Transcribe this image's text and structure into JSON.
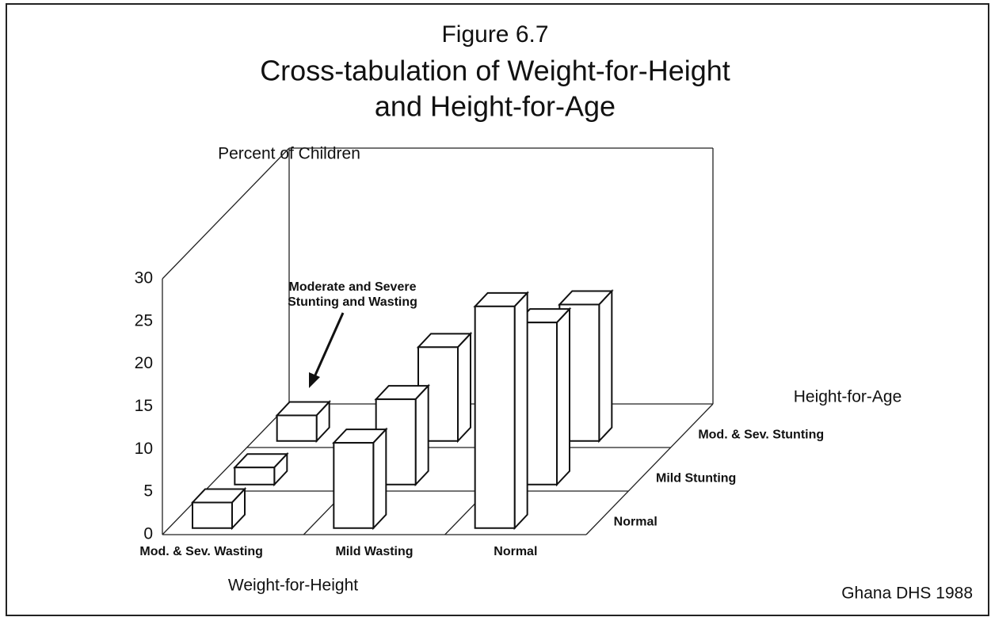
{
  "chart_data": {
    "type": "bar3d",
    "figure": "Figure 6.7",
    "title": [
      "Cross-tabulation of Weight-for-Height",
      "and Height-for-Age"
    ],
    "y_label": "Percent of Children",
    "x_label": "Weight-for-Height",
    "depth_label": "Height-for-Age",
    "categories": [
      "Mod. & Sev. Wasting",
      "Mild Wasting",
      "Normal"
    ],
    "series": [
      {
        "name": "Normal",
        "color": "#ffffff",
        "values": [
          3,
          10,
          26
        ]
      },
      {
        "name": "Mild Stunting",
        "color": "#ffffff",
        "values": [
          2,
          10,
          19
        ]
      },
      {
        "name": "Mod. & Sev. Stunting",
        "color": "#ffffff",
        "values": [
          3,
          11,
          16
        ]
      }
    ],
    "ylim": [
      0,
      30
    ],
    "yticks": [
      0,
      5,
      10,
      15,
      20,
      25,
      30
    ],
    "annotation": [
      "Moderate and Severe",
      "Stunting and Wasting"
    ],
    "source": "Ghana DHS 1988"
  }
}
